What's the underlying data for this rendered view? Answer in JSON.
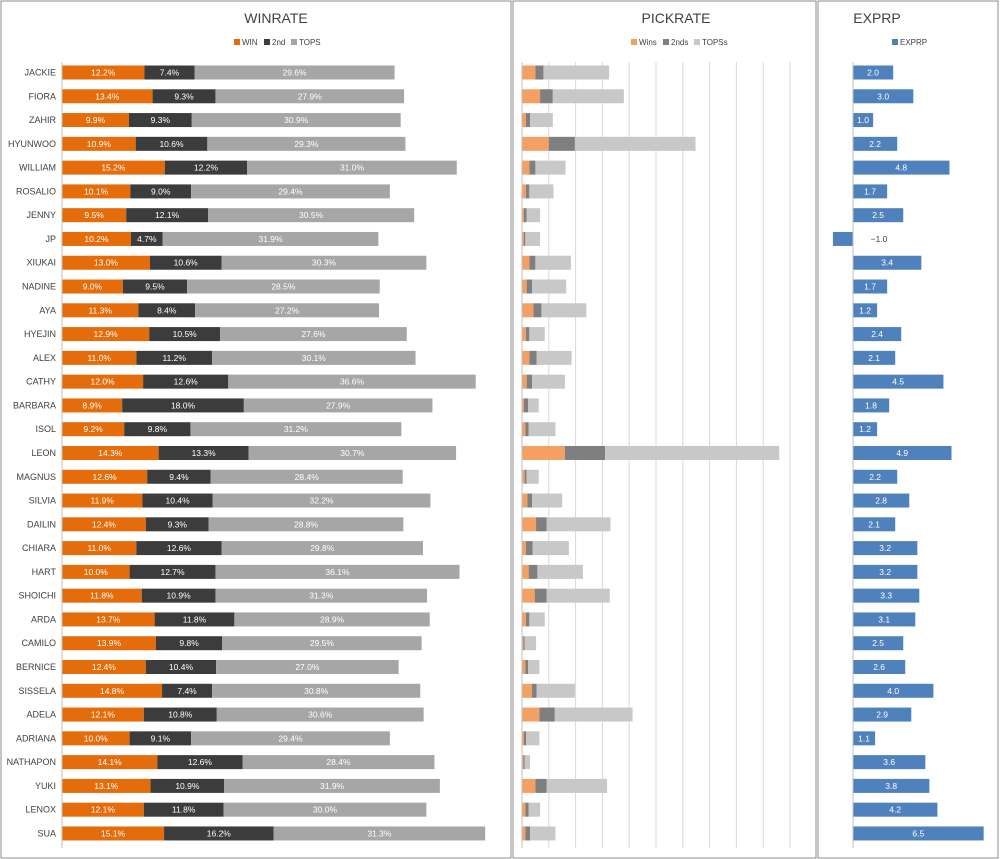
{
  "panels": {
    "winrate": {
      "title": "WINRATE",
      "legend": [
        "WIN",
        "2nd",
        "TOPS"
      ]
    },
    "pickrate": {
      "title": "PICKRATE",
      "legend": [
        "Wins",
        "2nds",
        "TOPSs"
      ]
    },
    "exprp": {
      "title": "EXPRP",
      "legend": [
        "EXPRP"
      ]
    }
  },
  "colors": {
    "win": "#e46c0a",
    "second": "#3c3c3c",
    "tops": "#a6a6a6",
    "pick_win": "#f4a063",
    "pick_second": "#7f7f7f",
    "pick_tops": "#c8c8c8",
    "exprp": "#4f81bd",
    "grid": "#d9d9d9",
    "border": "#8c8c8c"
  },
  "chart_data": [
    {
      "type": "bar",
      "title": "WINRATE",
      "orientation": "horizontal",
      "stacked": true,
      "categories": [
        "JACKIE",
        "FIORA",
        "ZAHIR",
        "HYUNWOO",
        "WILLIAM",
        "ROSALIO",
        "JENNY",
        "JP",
        "XIUKAI",
        "NADINE",
        "AYA",
        "HYEJIN",
        "ALEX",
        "CATHY",
        "BARBARA",
        "ISOL",
        "LEON",
        "MAGNUS",
        "SILVIA",
        "DAILIN",
        "CHIARA",
        "HART",
        "SHOICHI",
        "ARDA",
        "CAMILO",
        "BERNICE",
        "SISSELA",
        "ADELA",
        "ADRIANA",
        "NATHAPON",
        "YUKI",
        "LENOX",
        "SUA"
      ],
      "series": [
        {
          "name": "WIN",
          "values": [
            12.2,
            13.4,
            9.9,
            10.9,
            15.2,
            10.1,
            9.5,
            10.2,
            13.0,
            9.0,
            11.3,
            12.9,
            11.0,
            12.0,
            8.9,
            9.2,
            14.3,
            12.6,
            11.9,
            12.4,
            11.0,
            10.0,
            11.8,
            13.7,
            13.9,
            12.4,
            14.8,
            12.1,
            10.0,
            14.1,
            13.1,
            12.1,
            15.1
          ]
        },
        {
          "name": "2nd",
          "values": [
            7.4,
            9.3,
            9.3,
            10.6,
            12.2,
            9.0,
            12.1,
            4.7,
            10.6,
            9.5,
            8.4,
            10.5,
            11.2,
            12.6,
            18.0,
            9.8,
            13.3,
            9.4,
            10.4,
            9.3,
            12.6,
            12.7,
            10.9,
            11.8,
            9.8,
            10.4,
            7.4,
            10.8,
            9.1,
            12.6,
            10.9,
            11.8,
            16.2
          ]
        },
        {
          "name": "TOPS",
          "values": [
            29.6,
            27.9,
            30.9,
            29.3,
            31.0,
            29.4,
            30.5,
            31.9,
            30.3,
            28.5,
            27.2,
            27.6,
            30.1,
            36.6,
            27.9,
            31.2,
            30.7,
            28.4,
            32.2,
            28.8,
            29.8,
            36.1,
            31.3,
            28.9,
            29.5,
            27.0,
            30.8,
            30.6,
            29.4,
            28.4,
            31.9,
            30.0,
            31.3
          ]
        }
      ],
      "legend_position": "top"
    },
    {
      "type": "bar",
      "title": "PICKRATE",
      "orientation": "horizontal",
      "stacked": true,
      "grid": true,
      "xlim": [
        0,
        40
      ],
      "categories": [
        "JACKIE",
        "FIORA",
        "ZAHIR",
        "HYUNWOO",
        "WILLIAM",
        "ROSALIO",
        "JENNY",
        "JP",
        "XIUKAI",
        "NADINE",
        "AYA",
        "HYEJIN",
        "ALEX",
        "CATHY",
        "BARBARA",
        "ISOL",
        "LEON",
        "MAGNUS",
        "SILVIA",
        "DAILIN",
        "CHIARA",
        "HART",
        "SHOICHI",
        "ARDA",
        "CAMILO",
        "BERNICE",
        "SISSELA",
        "ADELA",
        "ADRIANA",
        "NATHAPON",
        "YUKI",
        "LENOX",
        "SUA"
      ],
      "series": [
        {
          "name": "Wins",
          "values": [
            2.0,
            2.7,
            0.6,
            4.0,
            1.1,
            0.6,
            0.3,
            0.3,
            1.1,
            0.7,
            1.7,
            0.6,
            1.1,
            0.7,
            0.3,
            0.5,
            6.4,
            0.4,
            0.8,
            2.1,
            0.6,
            1.0,
            1.9,
            0.6,
            0.2,
            0.5,
            1.5,
            2.6,
            0.3,
            0.2,
            2.0,
            0.5,
            0.5
          ]
        },
        {
          "name": "2nds",
          "values": [
            1.2,
            1.9,
            0.6,
            3.9,
            0.9,
            0.5,
            0.4,
            0.2,
            0.9,
            0.8,
            1.2,
            0.5,
            1.1,
            0.8,
            0.6,
            0.5,
            6.0,
            0.3,
            0.7,
            1.6,
            1.0,
            1.3,
            1.8,
            0.5,
            0.2,
            0.4,
            0.7,
            2.3,
            0.3,
            0.2,
            1.7,
            0.5,
            0.7
          ]
        },
        {
          "name": "TOPSs",
          "values": [
            9.8,
            10.6,
            3.4,
            18.0,
            4.5,
            3.6,
            2.0,
            2.2,
            5.3,
            5.1,
            6.7,
            2.3,
            5.2,
            4.9,
            1.6,
            4.0,
            26.0,
            1.8,
            4.5,
            9.5,
            5.4,
            6.8,
            9.4,
            2.3,
            1.7,
            1.7,
            5.7,
            11.6,
            2.0,
            0.8,
            9.0,
            1.7,
            3.8
          ]
        }
      ],
      "legend_position": "top"
    },
    {
      "type": "bar",
      "title": "EXPRP",
      "orientation": "horizontal",
      "categories": [
        "JACKIE",
        "FIORA",
        "ZAHIR",
        "HYUNWOO",
        "WILLIAM",
        "ROSALIO",
        "JENNY",
        "JP",
        "XIUKAI",
        "NADINE",
        "AYA",
        "HYEJIN",
        "ALEX",
        "CATHY",
        "BARBARA",
        "ISOL",
        "LEON",
        "MAGNUS",
        "SILVIA",
        "DAILIN",
        "CHIARA",
        "HART",
        "SHOICHI",
        "ARDA",
        "CAMILO",
        "BERNICE",
        "SISSELA",
        "ADELA",
        "ADRIANA",
        "NATHAPON",
        "YUKI",
        "LENOX",
        "SUA"
      ],
      "series": [
        {
          "name": "EXPRP",
          "values": [
            2.0,
            3.0,
            1.0,
            2.2,
            4.8,
            1.7,
            2.5,
            -1.0,
            3.4,
            1.7,
            1.2,
            2.4,
            2.1,
            4.5,
            1.8,
            1.2,
            4.9,
            2.2,
            2.8,
            2.1,
            3.2,
            3.2,
            3.3,
            3.1,
            2.5,
            2.6,
            4.0,
            2.9,
            1.1,
            3.6,
            3.8,
            4.2,
            6.5
          ]
        }
      ],
      "legend_position": "top"
    }
  ]
}
